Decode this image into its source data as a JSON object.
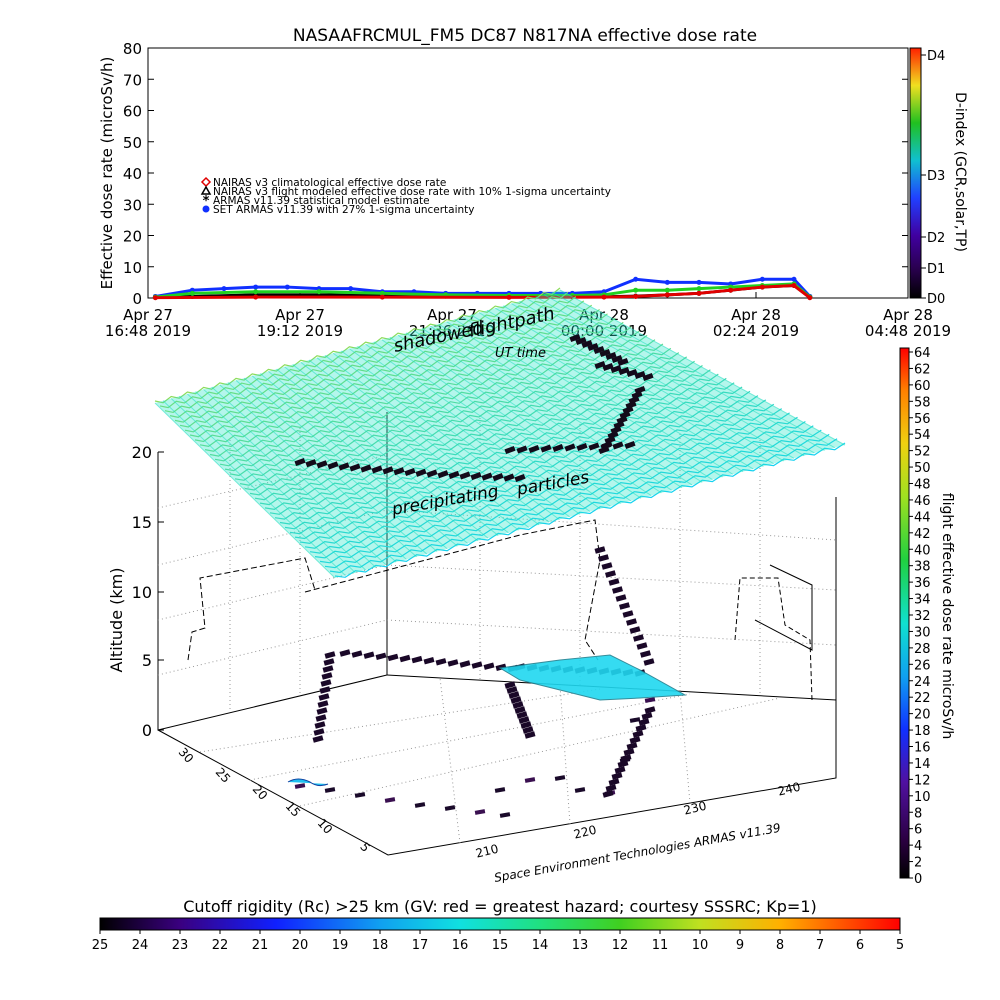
{
  "chart_data": [
    {
      "type": "line",
      "title": "NASAAFRCMUL_FM5 DC87 N817NA effective dose rate",
      "ylabel": "Effective dose rate (microSv/h)",
      "ylim": [
        0,
        80
      ],
      "y_ticks": [
        "0",
        "10",
        "20",
        "30",
        "40",
        "50",
        "60",
        "70",
        "80"
      ],
      "x_ticks": [
        {
          "date": "Apr 27",
          "time": "16:48 2019"
        },
        {
          "date": "Apr 27",
          "time": "19:12 2019"
        },
        {
          "date": "Apr 27",
          "time": "21:36 2019"
        },
        {
          "date": "Apr 28",
          "time": "00:00 2019"
        },
        {
          "date": "Apr 28",
          "time": "02:24 2019"
        },
        {
          "date": "Apr 28",
          "time": "04:48 2019"
        }
      ],
      "xlabel": "UT time",
      "legend_position": "upper-left",
      "legend": [
        {
          "label": "NAIRAS v3 climatological effective dose rate",
          "color": "#e00000",
          "marker": "diamond"
        },
        {
          "label": "NAIRAS v3 flight modeled effective dose rate with 10% 1-sigma uncertainty",
          "color": "#000000",
          "marker": "triangle"
        },
        {
          "label": "ARMAS v11.39 statistical model estimate",
          "color": "#20d020",
          "marker": "asterisk"
        },
        {
          "label": "SET ARMAS v11.39 with 27% 1-sigma uncertainty",
          "color": "#1030ff",
          "marker": "circle"
        }
      ],
      "series": [
        {
          "name": "SET ARMAS v11.39 with 27% 1-sigma uncertainty",
          "x": [
            "Apr 27 16:55",
            "Apr 27 17:30",
            "Apr 27 18:00",
            "Apr 27 18:30",
            "Apr 27 19:00",
            "Apr 27 19:30",
            "Apr 27 20:00",
            "Apr 27 20:30",
            "Apr 27 21:00",
            "Apr 27 21:30",
            "Apr 27 22:00",
            "Apr 27 22:30",
            "Apr 27 23:00",
            "Apr 27 23:30",
            "Apr 28 00:00",
            "Apr 28 00:30",
            "Apr 28 01:00",
            "Apr 28 01:30",
            "Apr 28 02:00",
            "Apr 28 02:30",
            "Apr 28 03:00",
            "Apr 28 03:15"
          ],
          "y": [
            0.5,
            2.5,
            3,
            3.5,
            3.5,
            3,
            3,
            2,
            2,
            1.5,
            1.5,
            1.5,
            1.5,
            1.5,
            2,
            6,
            5,
            5,
            4.5,
            6,
            6,
            0.5
          ]
        },
        {
          "name": "NAIRAS v3 flight modeled effective dose rate with 10% 1-sigma uncertainty",
          "x": [
            "Apr 27 16:55",
            "Apr 27 17:30",
            "Apr 27 18:30",
            "Apr 27 19:30",
            "Apr 27 20:30",
            "Apr 27 21:30",
            "Apr 27 22:30",
            "Apr 27 23:30",
            "Apr 28 00:00",
            "Apr 28 00:30",
            "Apr 28 01:00",
            "Apr 28 01:30",
            "Apr 28 02:00",
            "Apr 28 02:30",
            "Apr 28 03:00",
            "Apr 28 03:15"
          ],
          "y": [
            0.2,
            0.5,
            1,
            1,
            0.8,
            0.6,
            0.4,
            0.4,
            0.4,
            0.6,
            1,
            1.5,
            2.5,
            3.5,
            4,
            0.2
          ]
        },
        {
          "name": "ARMAS v11.39 statistical model estimate",
          "x": [
            "Apr 27 16:55",
            "Apr 27 17:30",
            "Apr 27 18:30",
            "Apr 27 19:30",
            "Apr 27 20:30",
            "Apr 27 21:30",
            "Apr 27 22:30",
            "Apr 27 23:30",
            "Apr 28 00:00",
            "Apr 28 00:30",
            "Apr 28 01:00",
            "Apr 28 01:30",
            "Apr 28 02:00",
            "Apr 28 02:30",
            "Apr 28 03:00",
            "Apr 28 03:15"
          ],
          "y": [
            0.3,
            1.5,
            2,
            2,
            1.5,
            1,
            0.8,
            0.8,
            1,
            2.5,
            2.5,
            3,
            3.5,
            4,
            4.5,
            0.3
          ]
        },
        {
          "name": "NAIRAS v3 climatological effective dose rate",
          "x": [
            "Apr 27 16:55",
            "Apr 27 18:30",
            "Apr 27 20:30",
            "Apr 27 22:30",
            "Apr 28 00:00",
            "Apr 28 00:30",
            "Apr 28 01:00",
            "Apr 28 01:30",
            "Apr 28 02:00",
            "Apr 28 02:30",
            "Apr 28 03:00",
            "Apr 28 03:15"
          ],
          "y": [
            0.1,
            0.3,
            0.3,
            0.2,
            0.3,
            0.5,
            1,
            1.5,
            2.5,
            3.5,
            4,
            0.1
          ]
        }
      ],
      "right_colorbar": {
        "label": "D-index (GCR,solar,TP)",
        "ticks": [
          "D0",
          "D1",
          "D2",
          "D3",
          "D4"
        ]
      }
    },
    {
      "type": "scatter",
      "subtype": "3d-flight-path",
      "zlabel": "Altitude (km)",
      "zlim": [
        0,
        20
      ],
      "z_ticks": [
        "0",
        "5",
        "10",
        "15",
        "20"
      ],
      "x_ticks": [
        "210",
        "220",
        "230",
        "240"
      ],
      "y_ticks": [
        "5",
        "10",
        "15",
        "20",
        "25",
        "30"
      ],
      "annotations": [
        "shadowed",
        "flightpath",
        "UT time",
        "precipitating",
        "particles"
      ],
      "credit": "Space Environment Technologies ARMAS v11.39",
      "colorbar": {
        "label": "flight effective dose rate microSv/h",
        "range": [
          0,
          64
        ],
        "ticks": [
          "0",
          "2",
          "4",
          "6",
          "8",
          "10",
          "12",
          "14",
          "16",
          "18",
          "20",
          "22",
          "24",
          "26",
          "28",
          "30",
          "32",
          "34",
          "36",
          "38",
          "40",
          "42",
          "44",
          "46",
          "48",
          "50",
          "52",
          "54",
          "56",
          "58",
          "60",
          "62",
          "64"
        ]
      },
      "bottom_colorbar": {
        "label": "Cutoff rigidity (Rc) >25 km (GV: red = greatest hazard; courtesy SSSRC; Kp=1)",
        "ticks": [
          "25",
          "24",
          "23",
          "22",
          "21",
          "20",
          "19",
          "18",
          "17",
          "16",
          "15",
          "14",
          "13",
          "12",
          "11",
          "10",
          "9",
          "8",
          "7",
          "6",
          "5"
        ]
      }
    }
  ]
}
